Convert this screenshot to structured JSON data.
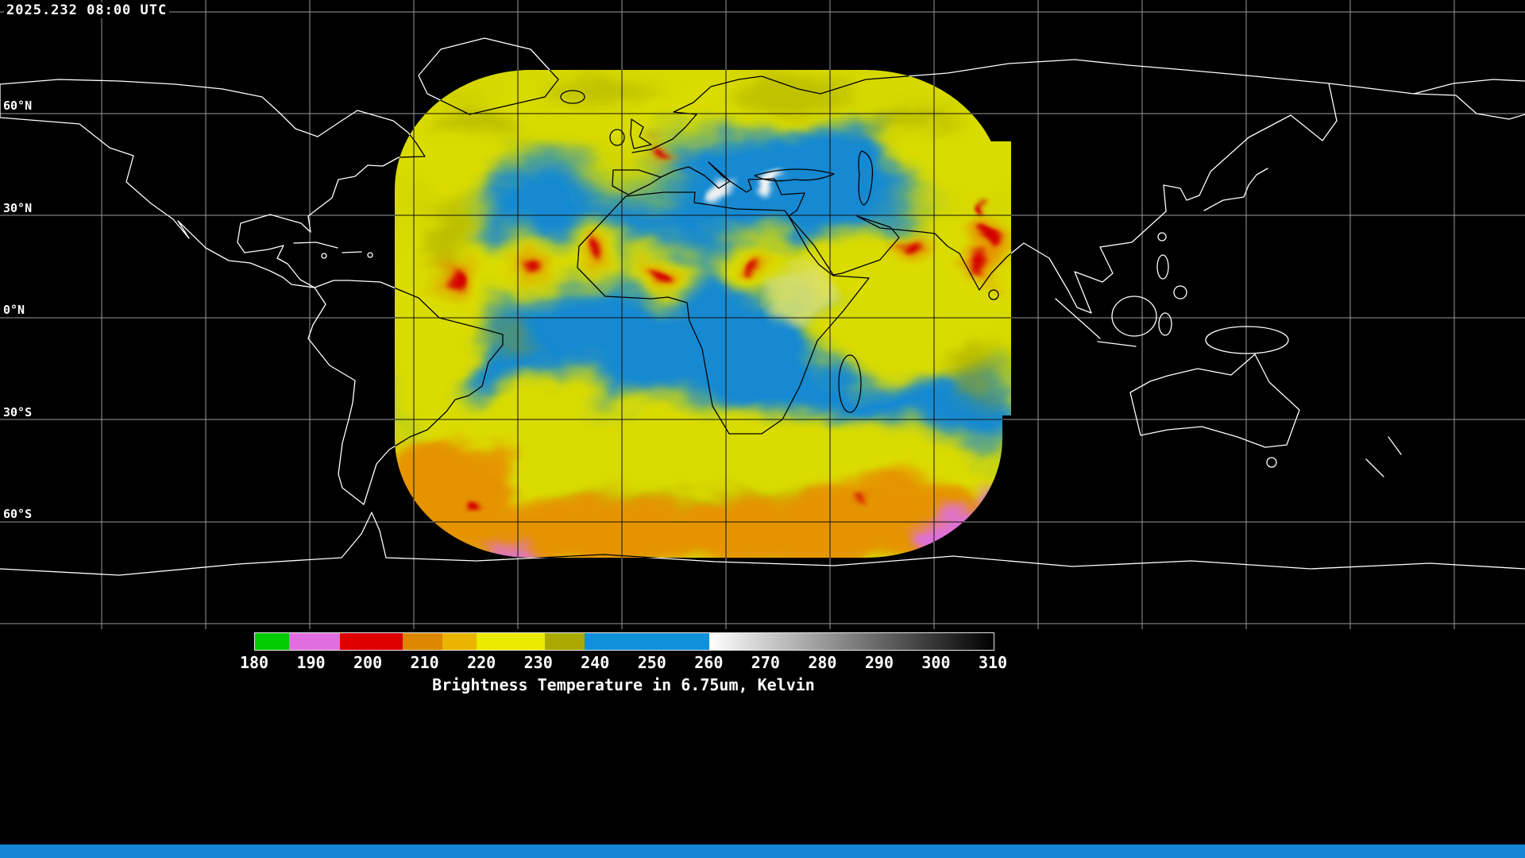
{
  "header": {
    "timestamp": "2025.232 08:00 UTC"
  },
  "map": {
    "lat_labels": [
      "0°N",
      "30°N",
      "60°N",
      "30°S",
      "60°S"
    ],
    "colors": {
      "background": "#000000",
      "coastline_outside": "#ffffff",
      "coastline_inside": "#000000",
      "grid_outside": "#9a9a9a",
      "grid_inside": "#101010",
      "footprint_base": "#d6d800",
      "moist_blue": "#1289d2",
      "dry_yellow": "#dadc00",
      "olive": "#9b9d00",
      "cold_orange": "#e59400",
      "cold_red": "#d40000",
      "cold_magenta": "#df6fd8",
      "warm_white": "#f2f2f2",
      "glint_pale": "#e3e468"
    }
  },
  "colorbar": {
    "title": "Brightness Temperature in 6.75um, Kelvin",
    "unit": "Kelvin",
    "range": [
      180,
      310
    ],
    "ticks": [
      "180",
      "190",
      "200",
      "210",
      "220",
      "230",
      "240",
      "250",
      "260",
      "270",
      "280",
      "290",
      "300",
      "310"
    ],
    "segments": [
      {
        "from": 180,
        "to": 186,
        "color": "#00cc00"
      },
      {
        "from": 186,
        "to": 195,
        "color": "#df6fe0"
      },
      {
        "from": 195,
        "to": 206,
        "color": "#dd0000"
      },
      {
        "from": 206,
        "to": 213,
        "color": "#dd8800"
      },
      {
        "from": 213,
        "to": 219,
        "color": "#eab400"
      },
      {
        "from": 219,
        "to": 231,
        "color": "#eaea00"
      },
      {
        "from": 231,
        "to": 238,
        "color": "#a9a900"
      },
      {
        "from": 238,
        "to": 260,
        "color": "#1090d8"
      },
      {
        "from": 260,
        "to": 310,
        "color": "ramp",
        "ramp_from": "#ffffff",
        "ramp_to": "#000000"
      }
    ]
  },
  "footer": {
    "strip_color": "#1585d6"
  }
}
